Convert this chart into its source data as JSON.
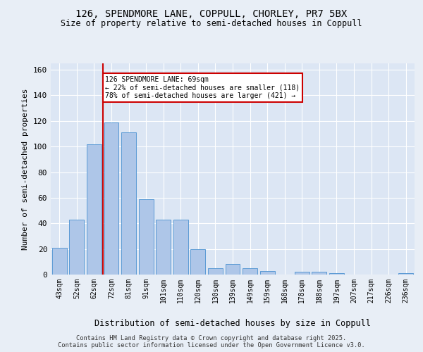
{
  "title1": "126, SPENDMORE LANE, COPPULL, CHORLEY, PR7 5BX",
  "title2": "Size of property relative to semi-detached houses in Coppull",
  "xlabel": "Distribution of semi-detached houses by size in Coppull",
  "ylabel": "Number of semi-detached properties",
  "categories": [
    "43sqm",
    "52sqm",
    "62sqm",
    "72sqm",
    "81sqm",
    "91sqm",
    "101sqm",
    "110sqm",
    "120sqm",
    "130sqm",
    "139sqm",
    "149sqm",
    "159sqm",
    "168sqm",
    "178sqm",
    "188sqm",
    "197sqm",
    "207sqm",
    "217sqm",
    "226sqm",
    "236sqm"
  ],
  "values": [
    21,
    43,
    102,
    119,
    111,
    59,
    43,
    43,
    20,
    5,
    8,
    5,
    3,
    0,
    2,
    2,
    1,
    0,
    0,
    0,
    1
  ],
  "bar_color": "#aec6e8",
  "bar_edge_color": "#5b9bd5",
  "vline_color": "#cc0000",
  "annotation_text": "126 SPENDMORE LANE: 69sqm\n← 22% of semi-detached houses are smaller (118)\n78% of semi-detached houses are larger (421) →",
  "annotation_box_color": "#cc0000",
  "ylim": [
    0,
    165
  ],
  "yticks": [
    0,
    20,
    40,
    60,
    80,
    100,
    120,
    140,
    160
  ],
  "footer1": "Contains HM Land Registry data © Crown copyright and database right 2025.",
  "footer2": "Contains public sector information licensed under the Open Government Licence v3.0.",
  "bg_color": "#e8eef6",
  "plot_bg_color": "#dce6f4"
}
